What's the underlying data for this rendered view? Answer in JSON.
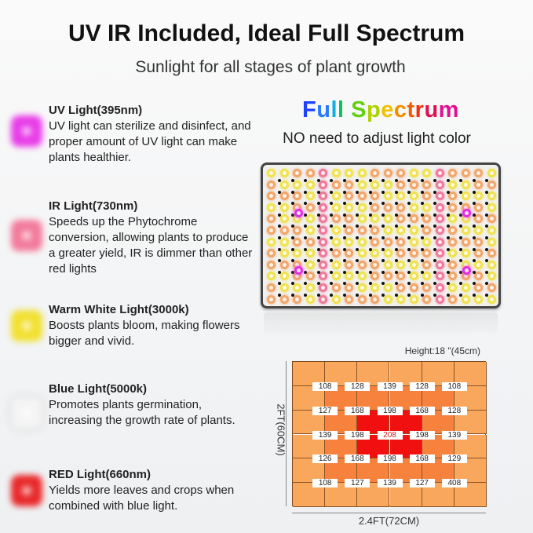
{
  "header": {
    "title": "UV IR Included, Ideal Full Spectrum",
    "subtitle": "Sunlight for all stages of plant growth"
  },
  "lights": [
    {
      "title": "UV Light(395nm)",
      "desc": "UV light can sterilize and disinfect, and proper amount of UV light can make plants healthier.",
      "color": "#e83ce8"
    },
    {
      "title": "IR Light(730nm)",
      "desc": "Speeds up the Phytochrome conversion, allowing plants to produce a greater yield, IR is dimmer than other red lights",
      "color": "#f27a9a"
    },
    {
      "title": "Warm White Light(3000k)",
      "desc": "Boosts plants bloom, making flowers bigger and vivid.",
      "color": "#f2e030"
    },
    {
      "title": "Blue Light(5000k)",
      "desc": "Promotes plants germination, increasing the growth rate of plants.",
      "color": "#f4f4f4"
    },
    {
      "title": "RED Light(660nm)",
      "desc": "Yields more leaves and crops when combined with blue light.",
      "color": "#e8282a"
    }
  ],
  "spectrum": {
    "title": "Full Spectrum",
    "subtitle": "NO need to adjust light color"
  },
  "ppfd": {
    "height_label": "Height:18 \"(45cm)",
    "width_label": "2.4FT(72CM)",
    "depth_label": "2FT(60CM)",
    "values": [
      [
        108,
        128,
        139,
        128,
        108
      ],
      [
        127,
        168,
        198,
        168,
        128
      ],
      [
        139,
        198,
        208,
        198,
        139
      ],
      [
        126,
        168,
        198,
        168,
        129
      ],
      [
        108,
        127,
        139,
        127,
        408
      ]
    ],
    "colors": {
      "outer": "#f9a75c",
      "middle": "#f6823e",
      "center": "#f01010"
    }
  }
}
